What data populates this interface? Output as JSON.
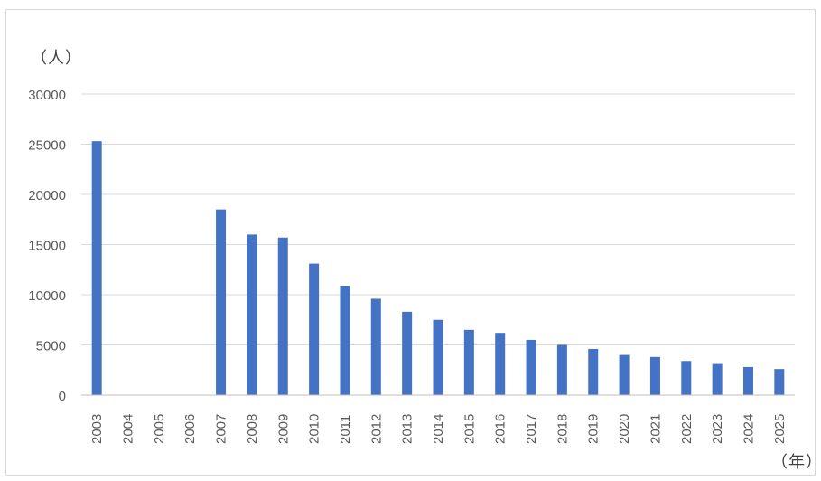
{
  "chart_data": {
    "type": "bar",
    "title": "",
    "xlabel": "（年）",
    "ylabel": "（人）",
    "categories": [
      "2003",
      "2004",
      "2005",
      "2006",
      "2007",
      "2008",
      "2009",
      "2010",
      "2011",
      "2012",
      "2013",
      "2014",
      "2015",
      "2016",
      "2017",
      "2018",
      "2019",
      "2020",
      "2021",
      "2022",
      "2023",
      "2024",
      "2025"
    ],
    "series": [
      {
        "values": [
          25300,
          null,
          null,
          null,
          18500,
          16000,
          15700,
          13100,
          10900,
          9600,
          8300,
          7500,
          6500,
          6200,
          5500,
          5000,
          4600,
          4000,
          3800,
          3400,
          3100,
          2800,
          2600
        ]
      }
    ],
    "ylim": [
      0,
      30000
    ],
    "yticks": [
      "0",
      "5000",
      "10000",
      "15000",
      "20000",
      "25000",
      "30000"
    ],
    "grid": true,
    "legend": "none",
    "bar_color": "#4472C4",
    "grid_color": "#d9d9d9",
    "axis_color": "#bfbfbf",
    "text_color": "#595959"
  }
}
